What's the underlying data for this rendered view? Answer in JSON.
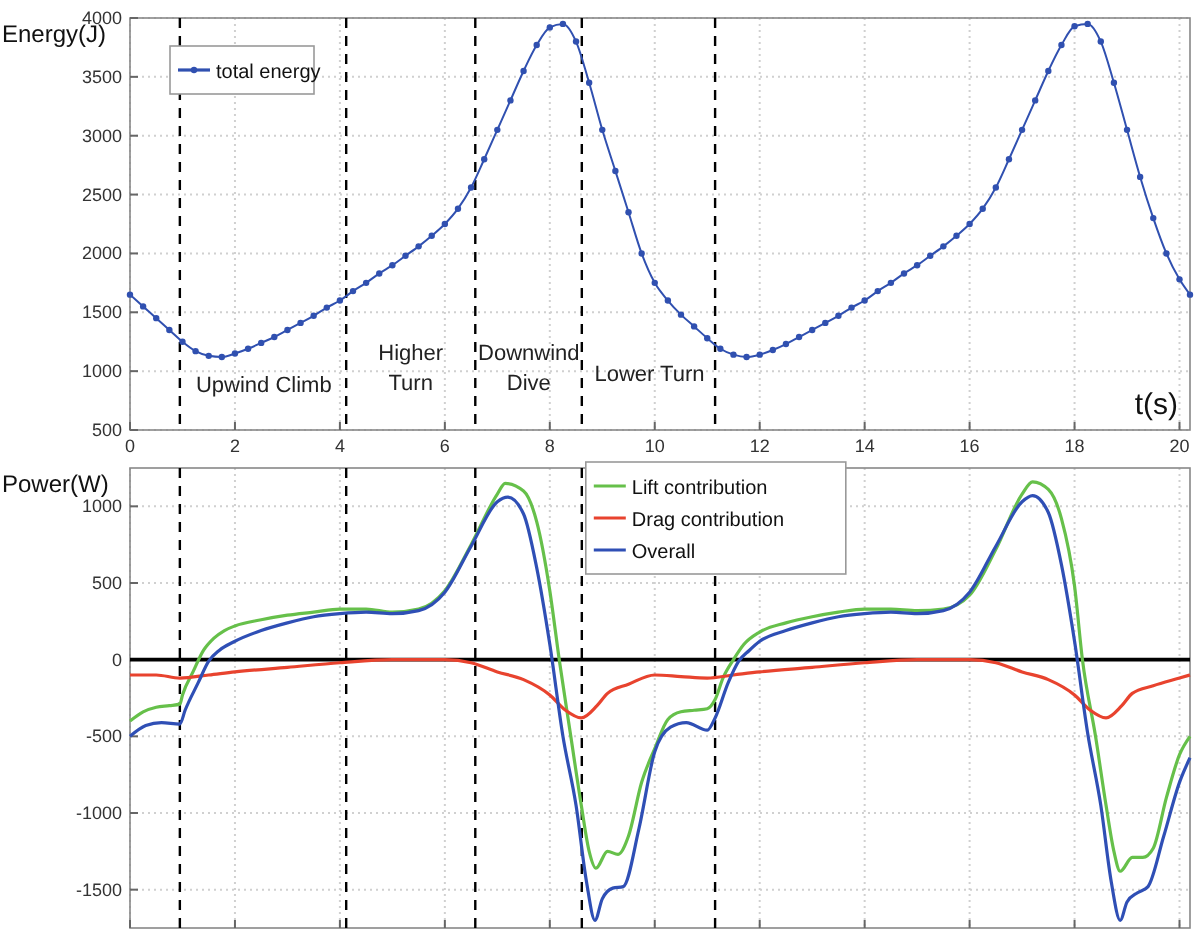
{
  "chart_data": [
    {
      "type": "line",
      "ylabel": "Energy(J)",
      "xlabel": "t(s)",
      "xlim": [
        0,
        20.2
      ],
      "xticks": [
        0,
        2,
        4,
        6,
        8,
        10,
        12,
        14,
        16,
        18,
        20
      ],
      "ylim": [
        500,
        4000
      ],
      "yticks": [
        500,
        1000,
        1500,
        2000,
        2500,
        3000,
        3500,
        4000
      ],
      "grid": true,
      "legend": "top left",
      "marker": "circle",
      "line_style": "solid",
      "series": [
        {
          "name": "total energy",
          "color": "#3050b0",
          "x": [
            0,
            0.25,
            0.5,
            0.75,
            1,
            1.25,
            1.5,
            1.75,
            2,
            2.25,
            2.5,
            2.75,
            3,
            3.25,
            3.5,
            3.75,
            4,
            4.25,
            4.5,
            4.75,
            5,
            5.25,
            5.5,
            5.75,
            6,
            6.25,
            6.5,
            6.75,
            7,
            7.25,
            7.5,
            7.75,
            8,
            8.25,
            8.5,
            8.75,
            9,
            9.25,
            9.5,
            9.75,
            10,
            10.25,
            10.5,
            10.75,
            11,
            11.25,
            11.5,
            11.75,
            12,
            12.25,
            12.5,
            12.75,
            13,
            13.25,
            13.5,
            13.75,
            14,
            14.25,
            14.5,
            14.75,
            15,
            15.25,
            15.5,
            15.75,
            16,
            16.25,
            16.5,
            16.75,
            17,
            17.25,
            17.5,
            17.75,
            18,
            18.25,
            18.5,
            18.75,
            19,
            19.25,
            19.5,
            19.75,
            20,
            20.2
          ],
          "values": [
            1650,
            1550,
            1450,
            1350,
            1250,
            1170,
            1130,
            1120,
            1150,
            1190,
            1240,
            1290,
            1350,
            1410,
            1470,
            1540,
            1600,
            1680,
            1750,
            1830,
            1900,
            1980,
            2060,
            2150,
            2250,
            2380,
            2560,
            2800,
            3050,
            3300,
            3550,
            3770,
            3920,
            3950,
            3800,
            3450,
            3050,
            2700,
            2350,
            2000,
            1750,
            1600,
            1480,
            1380,
            1280,
            1190,
            1140,
            1120,
            1140,
            1180,
            1230,
            1290,
            1350,
            1410,
            1470,
            1540,
            1600,
            1680,
            1750,
            1830,
            1900,
            1980,
            2060,
            2150,
            2250,
            2380,
            2560,
            2800,
            3050,
            3300,
            3550,
            3770,
            3930,
            3950,
            3800,
            3450,
            3050,
            2650,
            2300,
            2000,
            1780,
            1650
          ]
        }
      ],
      "ref_lines": [
        {
          "axis": "x",
          "value": 0.95,
          "color": "#000000",
          "line_style": "dashed"
        },
        {
          "axis": "x",
          "value": 4.12,
          "color": "#000000",
          "line_style": "dashed"
        },
        {
          "axis": "x",
          "value": 6.58,
          "color": "#000000",
          "line_style": "dashed"
        },
        {
          "axis": "x",
          "value": 8.61,
          "color": "#000000",
          "line_style": "dashed"
        },
        {
          "axis": "x",
          "value": 11.15,
          "color": "#000000",
          "line_style": "dashed"
        }
      ],
      "annotations": [
        "Upwind Climb",
        "Higher\nTurn",
        "Downwind\nDive",
        "Lower Turn"
      ]
    },
    {
      "type": "line",
      "ylabel": "Power(W)",
      "xlim": [
        0,
        20.2
      ],
      "xticks": [
        0,
        2,
        4,
        6,
        8,
        10,
        12,
        14,
        16,
        18,
        20
      ],
      "ylim": [
        -1750,
        1250
      ],
      "yticks": [
        -1500,
        -1000,
        -500,
        0,
        500,
        1000
      ],
      "tick_labels": "y",
      "grid": true,
      "legend": "top",
      "line_style": "solid",
      "series": [
        {
          "name": "Lift contribution",
          "color": "#66c04a",
          "x": [
            0,
            0.25,
            0.5,
            0.75,
            0.95,
            1,
            1.2,
            1.4,
            1.6,
            1.8,
            2,
            2.5,
            3,
            3.5,
            4,
            4.5,
            5,
            5.5,
            6,
            6.5,
            7,
            7.15,
            7.5,
            7.75,
            8,
            8.18,
            8.4,
            8.6,
            8.75,
            8.88,
            9.1,
            9.3,
            9.5,
            9.75,
            10,
            10.25,
            10.5,
            10.75,
            11,
            11.15,
            11.3,
            11.5,
            11.7,
            12,
            12.5,
            13,
            13.5,
            14,
            14.5,
            15,
            15.5,
            16,
            16.5,
            17,
            17.2,
            17.5,
            17.75,
            18,
            18.15,
            18.4,
            18.6,
            18.75,
            18.87,
            19.1,
            19.3,
            19.5,
            19.75,
            20,
            20.2
          ],
          "values": [
            -400,
            -340,
            -310,
            -300,
            -290,
            -230,
            -80,
            60,
            140,
            190,
            220,
            260,
            290,
            310,
            330,
            330,
            310,
            330,
            450,
            750,
            1080,
            1150,
            1100,
            900,
            450,
            0,
            -500,
            -950,
            -1250,
            -1360,
            -1250,
            -1270,
            -1150,
            -800,
            -580,
            -390,
            -340,
            -330,
            -320,
            -260,
            -120,
            0,
            100,
            180,
            240,
            280,
            310,
            330,
            330,
            320,
            330,
            420,
            720,
            1080,
            1160,
            1110,
            920,
            480,
            0,
            -500,
            -950,
            -1250,
            -1380,
            -1290,
            -1290,
            -1230,
            -900,
            -620,
            -500
          ]
        },
        {
          "name": "Drag contribution",
          "color": "#e8432e",
          "x": [
            0,
            0.5,
            0.95,
            1.5,
            2,
            3,
            4,
            5,
            6,
            6.5,
            7,
            7.5,
            8,
            8.3,
            8.6,
            8.9,
            9.1,
            9.5,
            10,
            10.5,
            11,
            11.5,
            12,
            13,
            14,
            15,
            16,
            16.5,
            17,
            17.5,
            18,
            18.3,
            18.6,
            18.9,
            19.1,
            19.5,
            20,
            20.2
          ],
          "values": [
            -100,
            -100,
            -120,
            -100,
            -80,
            -50,
            -20,
            0,
            0,
            -20,
            -80,
            -130,
            -230,
            -330,
            -380,
            -300,
            -220,
            -160,
            -100,
            -110,
            -120,
            -100,
            -80,
            -50,
            -20,
            0,
            0,
            -20,
            -80,
            -130,
            -230,
            -330,
            -380,
            -300,
            -220,
            -170,
            -120,
            -100
          ]
        },
        {
          "name": "Overall",
          "color": "#2f4fb5",
          "x": [
            0,
            0.3,
            0.6,
            0.95,
            1.05,
            1.3,
            1.5,
            1.7,
            2,
            2.5,
            3,
            3.5,
            4,
            4.5,
            5,
            5.5,
            6,
            6.5,
            7,
            7.2,
            7.5,
            7.75,
            8,
            8.25,
            8.5,
            8.7,
            8.86,
            9,
            9.2,
            9.4,
            9.7,
            10,
            10.3,
            10.6,
            11,
            11.15,
            11.4,
            11.6,
            11.8,
            12,
            12.5,
            13,
            13.5,
            14,
            14.5,
            15,
            15.5,
            16,
            16.5,
            17,
            17.2,
            17.5,
            17.75,
            18,
            18.25,
            18.5,
            18.7,
            18.87,
            19,
            19.2,
            19.4,
            19.7,
            20,
            20.2
          ],
          "values": [
            -500,
            -430,
            -410,
            -420,
            -330,
            -150,
            -10,
            60,
            120,
            190,
            240,
            280,
            300,
            310,
            300,
            320,
            440,
            740,
            1030,
            1060,
            950,
            600,
            100,
            -500,
            -950,
            -1450,
            -1700,
            -1560,
            -1490,
            -1480,
            -1100,
            -600,
            -440,
            -410,
            -460,
            -380,
            -150,
            -10,
            60,
            120,
            190,
            240,
            280,
            300,
            310,
            300,
            320,
            440,
            740,
            1030,
            1070,
            960,
            620,
            120,
            -480,
            -950,
            -1450,
            -1700,
            -1580,
            -1520,
            -1480,
            -1150,
            -800,
            -640
          ]
        }
      ],
      "ref_lines": [
        {
          "axis": "y",
          "value": 0,
          "color": "#000000",
          "line_style": "solid"
        },
        {
          "axis": "x",
          "value": 0.95,
          "color": "#000000",
          "line_style": "dashed"
        },
        {
          "axis": "x",
          "value": 4.12,
          "color": "#000000",
          "line_style": "dashed"
        },
        {
          "axis": "x",
          "value": 6.58,
          "color": "#000000",
          "line_style": "dashed"
        },
        {
          "axis": "x",
          "value": 8.61,
          "color": "#000000",
          "line_style": "dashed"
        },
        {
          "axis": "x",
          "value": 11.15,
          "color": "#000000",
          "line_style": "dashed"
        }
      ]
    }
  ]
}
